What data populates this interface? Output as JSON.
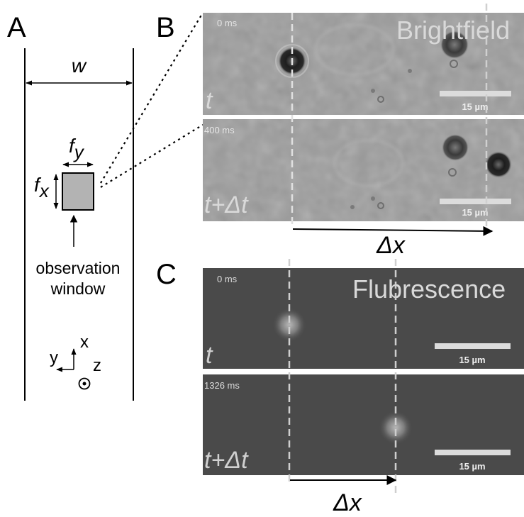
{
  "panels": {
    "A": {
      "letter": "A",
      "width_label": "w",
      "fy_base": "f",
      "fy_sub": "y",
      "fx_base": "f",
      "fx_sub": "x",
      "window_label_line1": "observation",
      "window_label_line2": "window",
      "axis_x": "x",
      "axis_y": "y",
      "axis_z": "z"
    },
    "B": {
      "letter": "B",
      "title": "Brightfield",
      "frame_top": {
        "time": "0 ms",
        "label": "t",
        "scalebar": "15 µm"
      },
      "frame_bottom": {
        "time": "400 ms",
        "label": "t+Δt",
        "scalebar": "15 µm"
      },
      "dx_label": "Δx"
    },
    "C": {
      "letter": "C",
      "title": "Flubrescence",
      "frame_top": {
        "time": "0 ms",
        "label": "t",
        "scalebar": "15 µm"
      },
      "frame_bottom": {
        "time": "1326 ms",
        "label": "t+Δt",
        "scalebar": "15 µm"
      },
      "dx_label": "Δx"
    }
  },
  "colors": {
    "brightfield_bg": "#9c9c9c",
    "fluorescence_bg": "#4a4a4a",
    "window_fill": "#b3b3b3",
    "overlay_text": "#d9d9d9"
  }
}
